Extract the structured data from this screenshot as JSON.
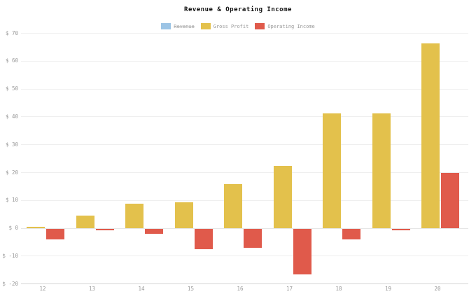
{
  "title": "Revenue & Operating Income",
  "legend": {
    "items": [
      {
        "label": "Revenue",
        "color": "#4a94d0",
        "hidden": true
      },
      {
        "label": "Gross Profit",
        "color": "#e3c14c",
        "hidden": false
      },
      {
        "label": "Operating Income",
        "color": "#e05a4b",
        "hidden": false
      }
    ]
  },
  "chart_data": {
    "type": "bar",
    "title": "Revenue & Operating Income",
    "categories": [
      "12",
      "13",
      "14",
      "15",
      "16",
      "17",
      "18",
      "19",
      "20"
    ],
    "series": [
      {
        "name": "Revenue",
        "color": "#4a94d0",
        "hidden": true,
        "values": null
      },
      {
        "name": "Gross Profit",
        "color": "#e3c14c",
        "hidden": false,
        "values": [
          0.4,
          4.4,
          8.7,
          9.1,
          15.8,
          22.2,
          41.0,
          41.2,
          66.3
        ]
      },
      {
        "name": "Operating Income",
        "color": "#e05a4b",
        "hidden": false,
        "values": [
          -3.9,
          -0.6,
          -1.8,
          -7.4,
          -7.0,
          -16.4,
          -3.9,
          -0.7,
          19.8
        ]
      }
    ],
    "xlabel": "",
    "ylabel": "",
    "ylim": [
      -20,
      70
    ],
    "ytick_step": 10,
    "ytick_labels": [
      "$ 70",
      "$ 60",
      "$ 50",
      "$ 40",
      "$ 30",
      "$ 20",
      "$ 10",
      "$ 0",
      "$ -10",
      "$ -20"
    ],
    "grid": true,
    "legend_position": "top"
  }
}
